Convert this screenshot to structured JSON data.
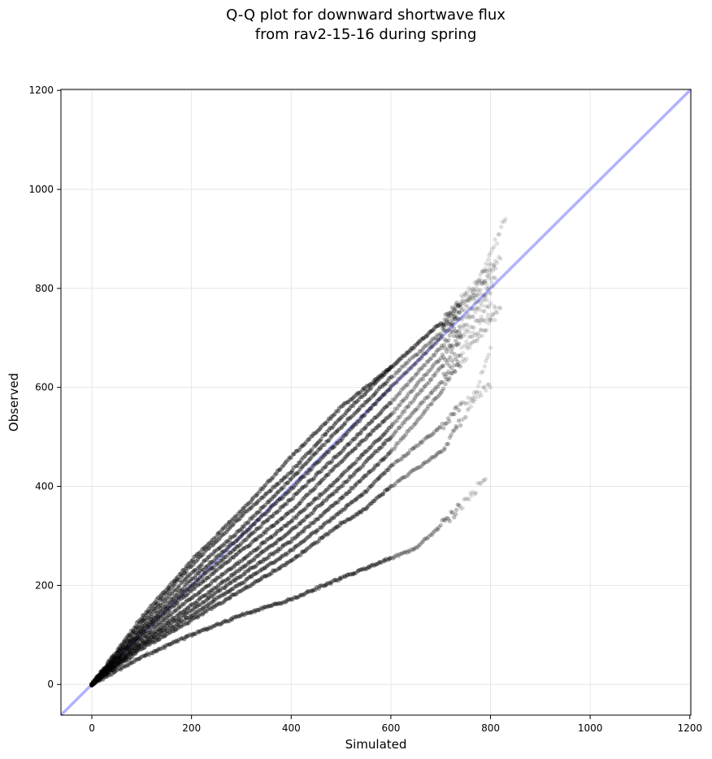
{
  "chart_data": {
    "type": "scatter",
    "title": [
      "Q-Q plot for downward shortwave flux",
      "from rav2-15-16 during spring"
    ],
    "xlabel": "Simulated",
    "ylabel": "Observed",
    "xlim": [
      -62,
      1202
    ],
    "ylim": [
      -62,
      1202
    ],
    "xticks": [
      0,
      200,
      400,
      600,
      800,
      1000,
      1200
    ],
    "yticks": [
      0,
      200,
      400,
      600,
      800,
      1000,
      1200
    ],
    "grid": true,
    "point_color": "#000000",
    "reference_line": {
      "from": [
        -62,
        -62
      ],
      "to": [
        1202,
        1202
      ],
      "color": "#aaaaff",
      "description": "1:1 line"
    },
    "series": [
      {
        "x": [
          0,
          100,
          200,
          300,
          400,
          500,
          600,
          700,
          780,
          830
        ],
        "y": [
          0,
          135,
          250,
          350,
          460,
          560,
          640,
          730,
          820,
          940
        ]
      },
      {
        "x": [
          0,
          100,
          200,
          300,
          400,
          500,
          600,
          700,
          760,
          800
        ],
        "y": [
          0,
          128,
          240,
          340,
          430,
          540,
          640,
          730,
          790,
          850
        ]
      },
      {
        "x": [
          0,
          100,
          200,
          300,
          400,
          500,
          600,
          700,
          760,
          820
        ],
        "y": [
          0,
          120,
          225,
          315,
          415,
          520,
          620,
          710,
          780,
          860
        ]
      },
      {
        "x": [
          0,
          100,
          200,
          300,
          400,
          500,
          600,
          700,
          760,
          810
        ],
        "y": [
          0,
          112,
          212,
          300,
          395,
          495,
          600,
          700,
          770,
          840
        ]
      },
      {
        "x": [
          0,
          100,
          200,
          300,
          400,
          500,
          600,
          700,
          760,
          810
        ],
        "y": [
          0,
          108,
          200,
          285,
          375,
          470,
          570,
          680,
          750,
          820
        ]
      },
      {
        "x": [
          0,
          100,
          200,
          300,
          400,
          500,
          600,
          700,
          760,
          800
        ],
        "y": [
          0,
          102,
          190,
          270,
          350,
          450,
          545,
          660,
          740,
          790
        ]
      },
      {
        "x": [
          0,
          100,
          200,
          300,
          400,
          500,
          600,
          700,
          760,
          800
        ],
        "y": [
          0,
          95,
          175,
          250,
          330,
          420,
          520,
          640,
          720,
          770
        ]
      },
      {
        "x": [
          0,
          100,
          200,
          300,
          400,
          500,
          600,
          700,
          760,
          810
        ],
        "y": [
          0,
          88,
          160,
          235,
          310,
          400,
          500,
          610,
          700,
          760
        ]
      },
      {
        "x": [
          0,
          100,
          200,
          300,
          400,
          500,
          600,
          700,
          760,
          820
        ],
        "y": [
          0,
          82,
          150,
          220,
          290,
          375,
          470,
          590,
          680,
          760
        ]
      },
      {
        "x": [
          0,
          100,
          200,
          300,
          400,
          500,
          550,
          600,
          700,
          760,
          800
        ],
        "y": [
          0,
          78,
          140,
          205,
          270,
          350,
          390,
          440,
          520,
          580,
          600
        ]
      },
      {
        "x": [
          0,
          100,
          200,
          300,
          400,
          500,
          550,
          600,
          700,
          760,
          800
        ],
        "y": [
          0,
          72,
          130,
          190,
          250,
          325,
          355,
          400,
          470,
          560,
          680
        ]
      },
      {
        "x": [
          0,
          100,
          200,
          300,
          400,
          500,
          600,
          650,
          700,
          750,
          790
        ],
        "y": [
          0,
          55,
          100,
          140,
          172,
          215,
          255,
          275,
          320,
          370,
          415
        ]
      }
    ]
  }
}
